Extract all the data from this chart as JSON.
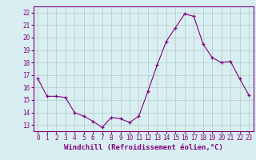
{
  "x": [
    0,
    1,
    2,
    3,
    4,
    5,
    6,
    7,
    8,
    9,
    10,
    11,
    12,
    13,
    14,
    15,
    16,
    17,
    18,
    19,
    20,
    21,
    22,
    23
  ],
  "y": [
    16.7,
    15.3,
    15.3,
    15.2,
    14.0,
    13.7,
    13.3,
    12.8,
    13.6,
    13.5,
    13.2,
    13.7,
    15.7,
    17.8,
    19.7,
    20.8,
    21.9,
    21.7,
    19.5,
    18.4,
    18.0,
    18.1,
    16.7,
    15.4
  ],
  "xlabel": "Windchill (Refroidissement éolien,°C)",
  "ylim": [
    12.5,
    22.5
  ],
  "xlim": [
    -0.5,
    23.5
  ],
  "yticks": [
    13,
    14,
    15,
    16,
    17,
    18,
    19,
    20,
    21,
    22
  ],
  "xticks": [
    0,
    1,
    2,
    3,
    4,
    5,
    6,
    7,
    8,
    9,
    10,
    11,
    12,
    13,
    14,
    15,
    16,
    17,
    18,
    19,
    20,
    21,
    22,
    23
  ],
  "line_color": "#800080",
  "marker_color": "#800080",
  "bg_color": "#d8eef0",
  "grid_color": "#b0cccc",
  "label_color": "#800080",
  "xlabel_fontsize": 6.5,
  "tick_fontsize": 5.5
}
